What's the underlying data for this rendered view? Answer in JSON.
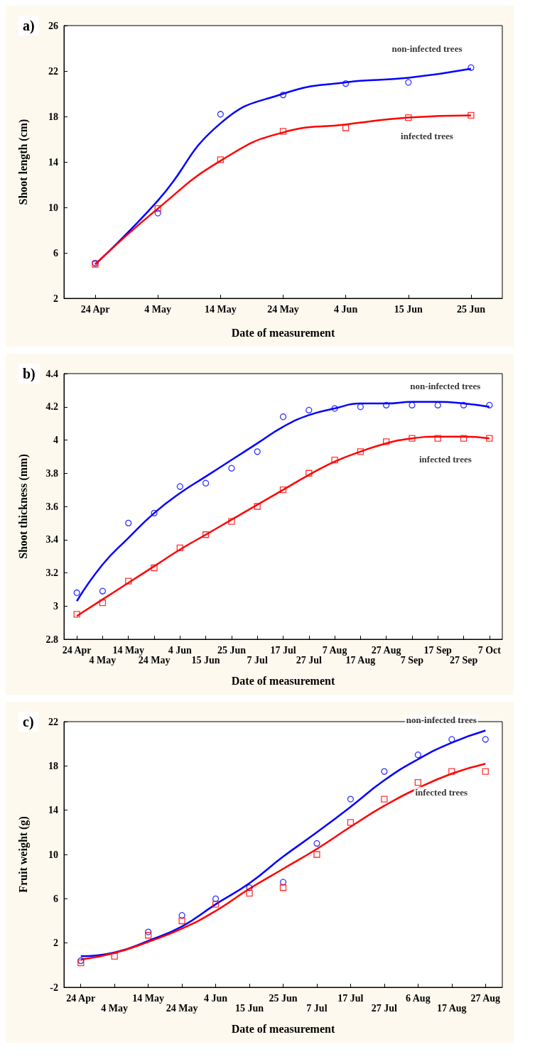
{
  "chart_data": [
    {
      "type": "scatter",
      "title": "a)",
      "xlabel": "Date of measurement",
      "ylabel": "Shoot length (cm)",
      "categories": [
        "24 Apr",
        "4 May",
        "14 May",
        "24 May",
        "4 Jun",
        "15 Jun",
        "25 Jun"
      ],
      "ylim": [
        2,
        26
      ],
      "yticks": [
        2,
        6,
        10,
        14,
        18,
        22,
        26
      ],
      "grid": false,
      "legend": false,
      "series": [
        {
          "name": "non-infected trees",
          "color": "#0000ff",
          "marker": "circle",
          "values": [
            5.1,
            9.5,
            18.2,
            19.9,
            20.9,
            21.0,
            22.3
          ]
        },
        {
          "name": "infected trees",
          "color": "#ff0000",
          "marker": "square",
          "values": [
            5.0,
            9.9,
            14.2,
            16.7,
            17.0,
            17.9,
            18.1
          ]
        },
        {
          "type": "line",
          "color": "#0000ff",
          "marker": "none",
          "values": [
            5.0,
            10.6,
            17.4,
            20.0,
            21.0,
            21.4,
            22.2
          ]
        },
        {
          "type": "line",
          "color": "#ff0000",
          "marker": "none",
          "values": [
            5.0,
            9.9,
            14.1,
            16.6,
            17.3,
            17.9,
            18.1
          ]
        }
      ]
    },
    {
      "type": "scatter",
      "title": "b)",
      "xlabel": "Date of measurement",
      "ylabel": "Shoot thickness (mm)",
      "categories": [
        "24 Apr",
        "4 May",
        "14 May",
        "24 May",
        "4 Jun",
        "15 Jun",
        "25 Jun",
        "7 Jul",
        "17 Jul",
        "27 Jul",
        "7 Aug",
        "17 Aug",
        "27 Aug",
        "7 Sep",
        "17 Sep",
        "27 Sep",
        "7 Oct"
      ],
      "ylim": [
        2.8,
        4.4
      ],
      "yticks": [
        2.8,
        3.0,
        3.2,
        3.4,
        3.6,
        3.8,
        4.0,
        4.2,
        4.4
      ],
      "grid": false,
      "legend": false,
      "series": [
        {
          "name": "non-infected trees",
          "color": "#0000ff",
          "marker": "circle",
          "values": [
            3.08,
            3.09,
            3.5,
            3.56,
            3.72,
            3.74,
            3.83,
            3.93,
            4.14,
            4.18,
            4.19,
            4.2,
            4.21,
            4.21,
            4.21,
            4.21,
            4.21
          ]
        },
        {
          "name": "infected trees",
          "color": "#ff0000",
          "marker": "square",
          "values": [
            2.95,
            3.02,
            3.15,
            3.23,
            3.35,
            3.43,
            3.51,
            3.6,
            3.7,
            3.8,
            3.88,
            3.93,
            3.99,
            4.01,
            4.01,
            4.01,
            4.01
          ]
        },
        {
          "type": "line",
          "color": "#0000ff",
          "marker": "none",
          "values": [
            3.03,
            3.25,
            3.41,
            3.56,
            3.68,
            3.78,
            3.88,
            3.98,
            4.08,
            4.15,
            4.19,
            4.22,
            4.22,
            4.23,
            4.23,
            4.22,
            4.2
          ]
        },
        {
          "type": "line",
          "color": "#ff0000",
          "marker": "none",
          "values": [
            2.94,
            3.04,
            3.14,
            3.24,
            3.34,
            3.43,
            3.52,
            3.61,
            3.7,
            3.79,
            3.87,
            3.93,
            3.98,
            4.01,
            4.02,
            4.02,
            4.01
          ]
        }
      ]
    },
    {
      "type": "scatter",
      "title": "c)",
      "xlabel": "Date of measurement",
      "ylabel": "Fruit weight (g)",
      "categories": [
        "24 Apr",
        "4 May",
        "14 May",
        "24 May",
        "4 Jun",
        "15 Jun",
        "25 Jun",
        "7 Jul",
        "17 Jul",
        "27 Jul",
        "6 Aug",
        "17 Aug",
        "27 Aug"
      ],
      "ylim": [
        -2,
        22
      ],
      "yticks": [
        -2,
        2,
        6,
        10,
        14,
        18,
        22
      ],
      "grid": false,
      "legend": false,
      "series": [
        {
          "name": "non-infected trees",
          "color": "#0000ff",
          "marker": "circle",
          "values": [
            0.4,
            null,
            3.0,
            4.5,
            6.0,
            7.0,
            7.5,
            11.0,
            15.0,
            17.5,
            19.0,
            20.4,
            20.4
          ]
        },
        {
          "name": "infected trees",
          "color": "#ff0000",
          "marker": "square",
          "values": [
            0.2,
            0.8,
            2.7,
            4.0,
            5.5,
            6.5,
            7.0,
            10.0,
            12.9,
            15.0,
            16.5,
            17.5,
            17.5
          ]
        },
        {
          "type": "line",
          "color": "#0000ff",
          "marker": "none",
          "values": [
            0.8,
            1.15,
            2.2,
            3.5,
            5.5,
            7.4,
            9.8,
            12.0,
            14.3,
            16.7,
            18.6,
            20.1,
            21.2
          ]
        },
        {
          "type": "line",
          "color": "#ff0000",
          "marker": "none",
          "values": [
            0.5,
            1.1,
            2.1,
            3.3,
            4.9,
            6.9,
            8.7,
            10.5,
            12.5,
            14.4,
            16.0,
            17.3,
            18.2
          ]
        }
      ]
    }
  ]
}
